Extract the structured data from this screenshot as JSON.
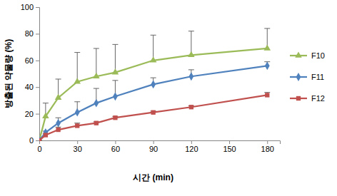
{
  "chart_data": {
    "type": "line",
    "x_label": "시간 (min)",
    "y_label": "방출된 약물량 (%)",
    "x": [
      0,
      5,
      15,
      30,
      45,
      60,
      90,
      120,
      180
    ],
    "xlim": [
      0,
      190
    ],
    "xticks": [
      0,
      30,
      60,
      90,
      120,
      150,
      180
    ],
    "ylim": [
      0,
      100
    ],
    "yticks": [
      0,
      20,
      40,
      60,
      80,
      100
    ],
    "grid": false,
    "legend": "right",
    "series": [
      {
        "name": "F10",
        "color": "#9bbb59",
        "marker": "triangle",
        "line_style": "solid",
        "values": [
          0,
          18,
          32,
          44,
          48,
          51,
          60,
          64,
          69
        ],
        "errors": [
          0,
          10,
          14,
          22,
          21,
          21,
          19,
          18,
          15
        ]
      },
      {
        "name": "F11",
        "color": "#4f81bd",
        "marker": "diamond",
        "line_style": "solid",
        "values": [
          0,
          6,
          13,
          21,
          28,
          33,
          42,
          48,
          56
        ],
        "errors": [
          0,
          1,
          4,
          8,
          11,
          12,
          5,
          5,
          3
        ]
      },
      {
        "name": "F12",
        "color": "#c0504d",
        "marker": "square",
        "line_style": "solid",
        "values": [
          0,
          4,
          8,
          11,
          13,
          17,
          21,
          25,
          34
        ],
        "errors": [
          0,
          1,
          2,
          2,
          1,
          1,
          1,
          1,
          2
        ]
      }
    ]
  }
}
